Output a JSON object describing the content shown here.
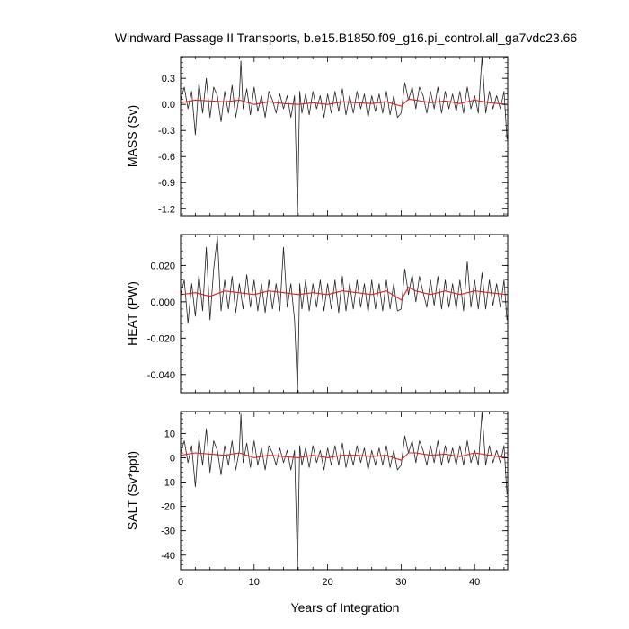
{
  "title": "Windward Passage II Transports, b.e15.B1850.f09_g16.pi_control.all_ga7vdc23.66",
  "chart_data": [
    {
      "type": "line",
      "panel": "mass",
      "ylabel": "MASS (Sv)",
      "xlabel": "",
      "xlim": [
        0,
        44.5
      ],
      "ylim": [
        -1.28,
        0.55
      ],
      "yticks": [
        0.3,
        0.0,
        -0.3,
        -0.6,
        -0.9,
        -1.2
      ],
      "ytick_labels": [
        "0.3",
        "0.0",
        "-0.3",
        "-0.6",
        "-0.9",
        "-1.2"
      ],
      "series": [
        {
          "style": "raw monthly (black)",
          "x": [
            0,
            0.5,
            1,
            1.5,
            2,
            2.5,
            3,
            3.5,
            4,
            4.5,
            5,
            5.5,
            6,
            6.5,
            7,
            7.5,
            8,
            8.2,
            8.5,
            9,
            9.5,
            10,
            10.5,
            11,
            11.5,
            12,
            12.5,
            13,
            13.5,
            14,
            14.5,
            15,
            15.5,
            15.9,
            16.2,
            16.5,
            17,
            17.5,
            18,
            18.5,
            19,
            19.5,
            20,
            20.5,
            21,
            21.5,
            22,
            22.5,
            23,
            23.5,
            24,
            24.5,
            25,
            25.5,
            26,
            26.5,
            27,
            27.5,
            28,
            28.5,
            29,
            29.5,
            30,
            30.5,
            31,
            31.5,
            32,
            32.5,
            33,
            33.5,
            34,
            34.5,
            35,
            35.5,
            36,
            36.5,
            37,
            37.5,
            38,
            38.5,
            39,
            39.5,
            40,
            40.5,
            41,
            41.5,
            42,
            42.5,
            43,
            43.5,
            44,
            44.4
          ],
          "y": [
            0.05,
            0.2,
            -0.05,
            0.15,
            -0.35,
            0.25,
            -0.1,
            0.3,
            -0.15,
            0.2,
            0.1,
            -0.2,
            0.15,
            -0.1,
            0.22,
            -0.15,
            0.1,
            0.5,
            -0.05,
            0.18,
            -0.12,
            0.2,
            -0.08,
            0.1,
            -0.15,
            0.15,
            0.05,
            -0.1,
            0.12,
            -0.05,
            0.1,
            -0.15,
            0.1,
            -1.25,
            0.15,
            -0.1,
            0.12,
            -0.12,
            0.15,
            -0.05,
            0.1,
            -0.15,
            0.12,
            -0.1,
            0.15,
            -0.08,
            0.18,
            -0.12,
            0.1,
            -0.1,
            0.15,
            -0.05,
            0.12,
            -0.15,
            0.1,
            -0.08,
            0.12,
            -0.1,
            0.15,
            -0.12,
            0.1,
            -0.15,
            -0.1,
            0.25,
            0.05,
            0.2,
            -0.05,
            0.2,
            0.1,
            -0.1,
            0.15,
            -0.05,
            0.2,
            -0.1,
            0.15,
            -0.05,
            0.12,
            -0.08,
            0.15,
            -0.1,
            0.2,
            -0.05,
            0.1,
            -0.1,
            0.55,
            -0.1,
            0.15,
            -0.05,
            0.1,
            -0.05,
            0.15,
            -0.4
          ]
        },
        {
          "style": "smoothed (red)",
          "x": [
            0,
            2,
            4,
            6,
            8,
            10,
            12,
            14,
            16,
            18,
            20,
            22,
            24,
            26,
            28,
            30,
            31,
            32,
            34,
            36,
            38,
            40,
            42,
            44.4
          ],
          "y": [
            0.02,
            0.05,
            0.04,
            0.03,
            0.05,
            0.0,
            0.03,
            0.01,
            0.0,
            0.02,
            0.0,
            0.03,
            0.02,
            0.01,
            0.03,
            -0.02,
            0.06,
            0.05,
            0.02,
            0.04,
            0.01,
            0.05,
            0.02,
            0.0
          ]
        }
      ]
    },
    {
      "type": "line",
      "panel": "heat",
      "ylabel": "HEAT (PW)",
      "xlabel": "",
      "xlim": [
        0,
        44.5
      ],
      "ylim": [
        -0.05,
        0.037
      ],
      "yticks": [
        0.02,
        0.0,
        -0.02,
        -0.04
      ],
      "ytick_labels": [
        "0.020",
        "0.000",
        "-0.020",
        "-0.040"
      ],
      "series": [
        {
          "style": "raw monthly (black)",
          "x": [
            0,
            0.5,
            1,
            1.5,
            2,
            2.5,
            3,
            3.5,
            4,
            4.5,
            5,
            5.5,
            6,
            6.5,
            7,
            7.5,
            8,
            8.5,
            9,
            9.5,
            10,
            10.5,
            11,
            11.5,
            12,
            12.5,
            13,
            13.5,
            14,
            14.5,
            15,
            15.5,
            15.9,
            16.2,
            16.5,
            17,
            17.5,
            18,
            18.5,
            19,
            19.5,
            20,
            20.5,
            21,
            21.5,
            22,
            22.5,
            23,
            23.5,
            24,
            24.5,
            25,
            25.5,
            26,
            26.5,
            27,
            27.5,
            28,
            28.5,
            29,
            29.5,
            30,
            30.5,
            31,
            31.5,
            32,
            32.5,
            33,
            33.5,
            34,
            34.5,
            35,
            35.5,
            36,
            36.5,
            37,
            37.5,
            38,
            38.5,
            39,
            39.5,
            40,
            40.5,
            41,
            41.5,
            42,
            42.5,
            43,
            43.5,
            44,
            44.4
          ],
          "y": [
            0.004,
            0.012,
            -0.012,
            0.01,
            -0.008,
            0.015,
            -0.005,
            0.03,
            -0.01,
            0.018,
            0.036,
            -0.005,
            0.012,
            -0.004,
            0.014,
            -0.006,
            0.01,
            -0.004,
            0.015,
            -0.003,
            0.012,
            -0.005,
            0.01,
            -0.006,
            0.012,
            -0.004,
            0.01,
            -0.005,
            0.03,
            -0.003,
            0.01,
            -0.01,
            -0.05,
            0.01,
            -0.004,
            0.012,
            -0.005,
            0.01,
            -0.003,
            0.012,
            -0.005,
            0.01,
            -0.004,
            0.012,
            -0.006,
            0.014,
            -0.005,
            0.01,
            -0.004,
            0.012,
            -0.003,
            0.01,
            -0.006,
            0.012,
            -0.004,
            0.01,
            -0.005,
            0.012,
            -0.004,
            0.01,
            -0.005,
            -0.004,
            0.018,
            0.004,
            0.015,
            0.0,
            0.014,
            0.005,
            -0.003,
            0.012,
            -0.002,
            0.014,
            -0.004,
            0.012,
            -0.003,
            0.01,
            -0.004,
            0.012,
            -0.005,
            0.022,
            -0.003,
            0.012,
            -0.004,
            0.016,
            -0.004,
            0.012,
            -0.002,
            0.01,
            -0.003,
            0.012,
            -0.01
          ]
        },
        {
          "style": "smoothed (red)",
          "x": [
            0,
            2,
            4,
            6,
            8,
            10,
            12,
            14,
            16,
            18,
            20,
            22,
            24,
            26,
            28,
            30,
            31,
            32,
            34,
            36,
            38,
            40,
            42,
            44.4
          ],
          "y": [
            0.004,
            0.005,
            0.003,
            0.006,
            0.005,
            0.004,
            0.006,
            0.005,
            0.004,
            0.005,
            0.004,
            0.006,
            0.005,
            0.004,
            0.006,
            0.001,
            0.008,
            0.006,
            0.004,
            0.006,
            0.004,
            0.006,
            0.005,
            0.004
          ]
        }
      ]
    },
    {
      "type": "line",
      "panel": "salt",
      "ylabel": "SALT (Sv*ppt)",
      "xlabel": "Years of Integration",
      "xlim": [
        0,
        44.5
      ],
      "ylim": [
        -46,
        19
      ],
      "yticks": [
        10,
        0,
        -10,
        -20,
        -30,
        -40
      ],
      "ytick_labels": [
        "10",
        "0",
        "-10",
        "-20",
        "-30",
        "-40"
      ],
      "xticks": [
        0,
        10,
        20,
        30,
        40
      ],
      "xtick_labels": [
        "0",
        "10",
        "20",
        "30",
        "40"
      ],
      "series": [
        {
          "style": "raw monthly (black)",
          "x": [
            0,
            0.5,
            1,
            1.5,
            2,
            2.5,
            3,
            3.5,
            4,
            4.5,
            5,
            5.5,
            6,
            6.5,
            7,
            7.5,
            8,
            8.2,
            8.5,
            9,
            9.5,
            10,
            10.5,
            11,
            11.5,
            12,
            12.5,
            13,
            13.5,
            14,
            14.5,
            15,
            15.5,
            15.9,
            16.2,
            16.5,
            17,
            17.5,
            18,
            18.5,
            19,
            19.5,
            20,
            20.5,
            21,
            21.5,
            22,
            22.5,
            23,
            23.5,
            24,
            24.5,
            25,
            25.5,
            26,
            26.5,
            27,
            27.5,
            28,
            28.5,
            29,
            29.5,
            30,
            30.5,
            31,
            31.5,
            32,
            32.5,
            33,
            33.5,
            34,
            34.5,
            35,
            35.5,
            36,
            36.5,
            37,
            37.5,
            38,
            38.5,
            39,
            39.5,
            40,
            40.5,
            41,
            41.5,
            42,
            42.5,
            43,
            43.5,
            44,
            44.4
          ],
          "y": [
            2,
            7,
            -2,
            5,
            -12,
            8,
            -3,
            12,
            -6,
            7,
            3,
            -7,
            5,
            -3,
            7,
            -5,
            3,
            18,
            -2,
            6,
            -4,
            7,
            -3,
            4,
            -5,
            5,
            2,
            -3,
            4,
            -2,
            3,
            -5,
            3,
            -46,
            5,
            -3,
            4,
            -4,
            5,
            -2,
            3,
            -5,
            4,
            -3,
            5,
            -3,
            6,
            -4,
            3,
            -3,
            5,
            -2,
            4,
            -5,
            3,
            -3,
            4,
            -3,
            5,
            -4,
            3,
            -5,
            -3,
            9,
            2,
            7,
            -2,
            7,
            3,
            -3,
            5,
            -2,
            7,
            -3,
            5,
            -2,
            4,
            -3,
            5,
            -3,
            7,
            -2,
            3,
            -3,
            19,
            -3,
            5,
            -2,
            3,
            -2,
            5,
            -15
          ]
        },
        {
          "style": "smoothed (red)",
          "x": [
            0,
            2,
            4,
            6,
            8,
            10,
            12,
            14,
            16,
            18,
            20,
            22,
            24,
            26,
            28,
            30,
            31,
            32,
            34,
            36,
            38,
            40,
            42,
            44.4
          ],
          "y": [
            1,
            2,
            1.5,
            1,
            2,
            0,
            1,
            0.5,
            0,
            1,
            0,
            1,
            1,
            0.5,
            1,
            -1,
            2,
            2,
            1,
            1.5,
            0.5,
            2,
            1,
            0
          ]
        }
      ]
    }
  ]
}
